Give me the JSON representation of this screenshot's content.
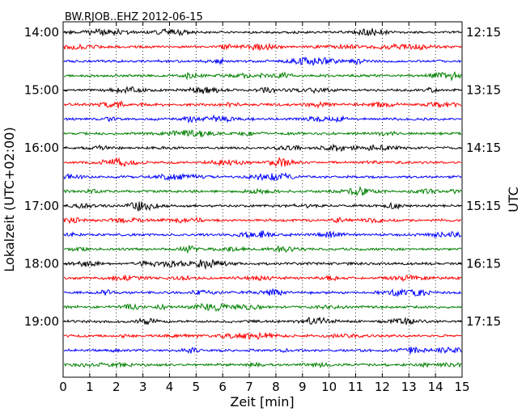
{
  "chart_data": {
    "type": "line",
    "title": "BW.RJOB..EHZ 2012-06-15",
    "xlabel": "Zeit  [min]",
    "ylabel_left": "Lokalzeit (UTC+02:00)",
    "ylabel_right": "UTC",
    "xlim": [
      0,
      15
    ],
    "x_ticks": [
      "0",
      "1",
      "2",
      "3",
      "4",
      "5",
      "6",
      "7",
      "8",
      "9",
      "10",
      "11",
      "12",
      "13",
      "14",
      "15"
    ],
    "grid": "vertical dotted",
    "left_hour_labels": [
      "14:00",
      "15:00",
      "16:00",
      "17:00",
      "18:00",
      "19:00"
    ],
    "right_hour_labels": [
      "12:15",
      "13:15",
      "14:15",
      "15:15",
      "16:15",
      "17:15"
    ],
    "trace_interval_min": 15,
    "trace_colors": [
      "#000000",
      "#ff0000",
      "#0000ff",
      "#008000"
    ],
    "num_traces": 24,
    "series": [
      {
        "start": "14:00",
        "color": "#000000"
      },
      {
        "start": "14:15",
        "color": "#ff0000"
      },
      {
        "start": "14:30",
        "color": "#0000ff"
      },
      {
        "start": "14:45",
        "color": "#008000"
      },
      {
        "start": "15:00",
        "color": "#000000"
      },
      {
        "start": "15:15",
        "color": "#ff0000"
      },
      {
        "start": "15:30",
        "color": "#0000ff"
      },
      {
        "start": "15:45",
        "color": "#008000"
      },
      {
        "start": "16:00",
        "color": "#000000"
      },
      {
        "start": "16:15",
        "color": "#ff0000"
      },
      {
        "start": "16:30",
        "color": "#0000ff"
      },
      {
        "start": "16:45",
        "color": "#008000"
      },
      {
        "start": "17:00",
        "color": "#000000"
      },
      {
        "start": "17:15",
        "color": "#ff0000"
      },
      {
        "start": "17:30",
        "color": "#0000ff"
      },
      {
        "start": "17:45",
        "color": "#008000"
      },
      {
        "start": "18:00",
        "color": "#000000"
      },
      {
        "start": "18:15",
        "color": "#ff0000"
      },
      {
        "start": "18:30",
        "color": "#0000ff"
      },
      {
        "start": "18:45",
        "color": "#008000"
      },
      {
        "start": "19:00",
        "color": "#000000"
      },
      {
        "start": "19:15",
        "color": "#ff0000"
      },
      {
        "start": "19:30",
        "color": "#0000ff"
      },
      {
        "start": "19:45",
        "color": "#008000"
      }
    ]
  }
}
